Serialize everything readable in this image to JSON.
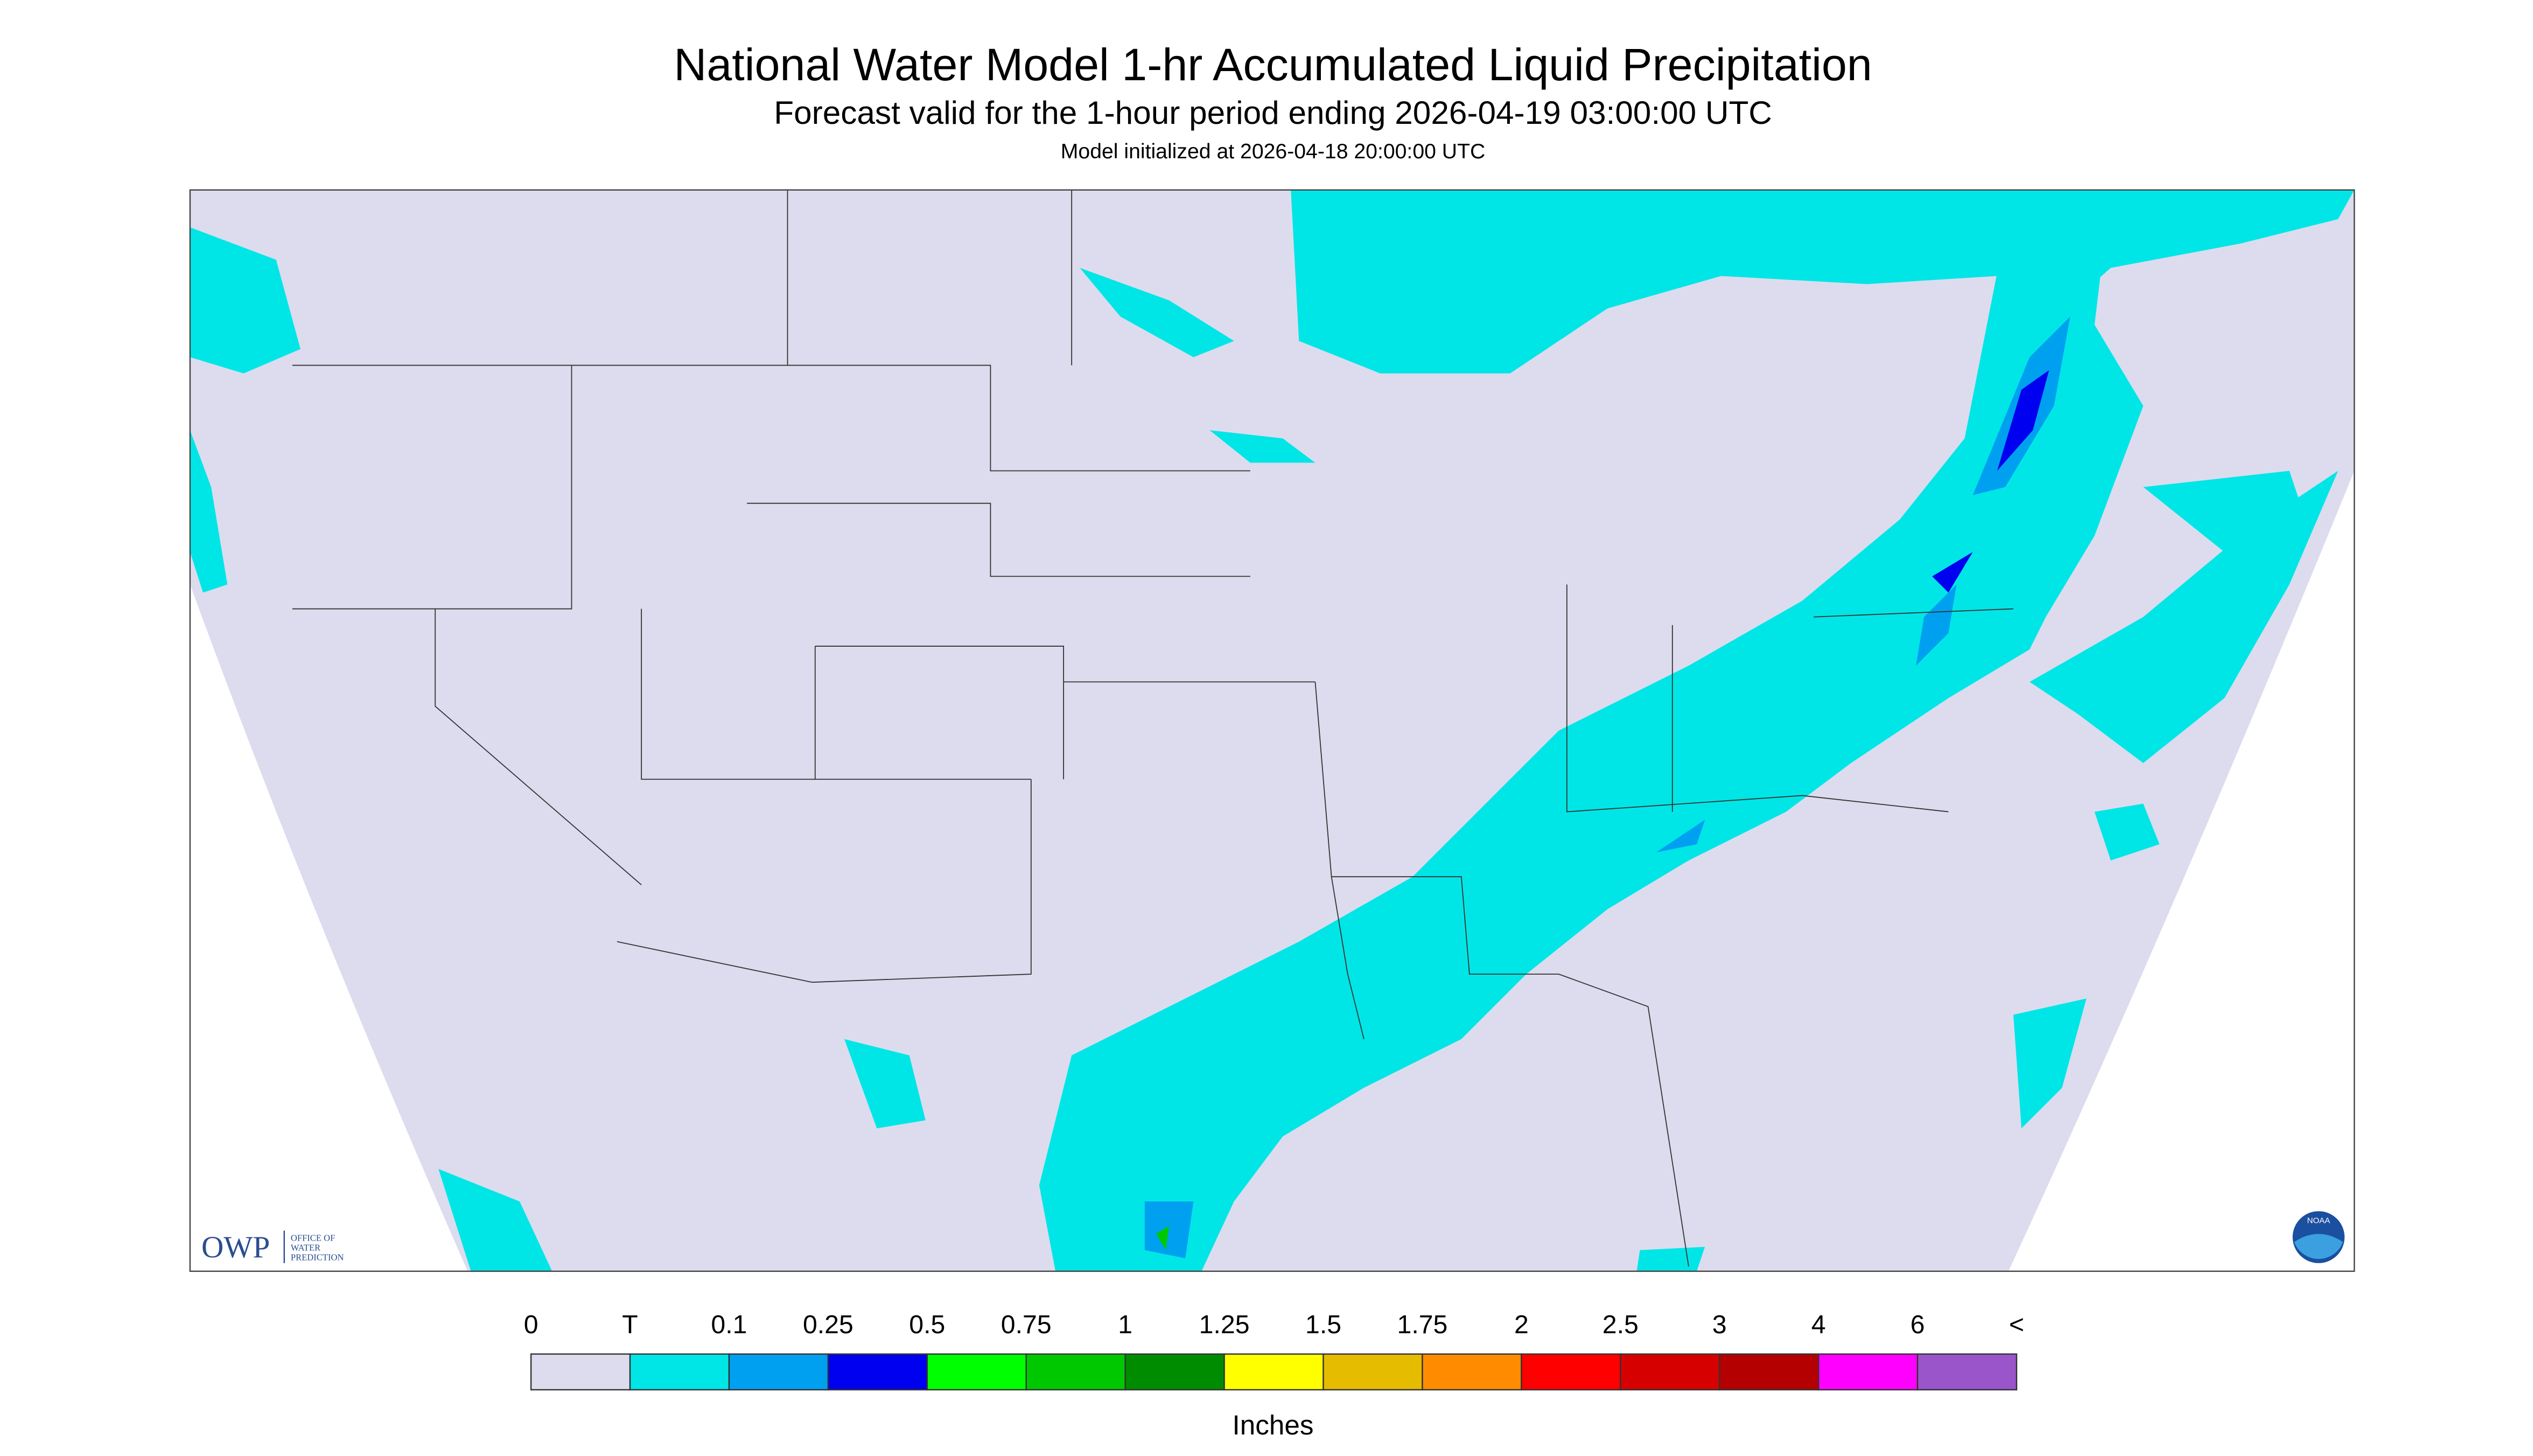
{
  "header": {
    "title": "National Water Model 1-hr Accumulated Liquid Precipitation",
    "subtitle": "Forecast valid for the 1-hour period ending 2026-04-19 03:00:00 UTC",
    "initialized": "Model initialized at 2026-04-18 20:00:00 UTC"
  },
  "logos": {
    "owp": "OWP",
    "owp_lines": [
      "OFFICE OF",
      "WATER",
      "PREDICTION"
    ],
    "noaa": "NOAA"
  },
  "legend": {
    "labels": [
      "0",
      "T",
      "0.1",
      "0.25",
      "0.5",
      "0.75",
      "1",
      "1.25",
      "1.5",
      "1.75",
      "2",
      "2.5",
      "3",
      "4",
      "6",
      "<"
    ],
    "colors": [
      "#dcdcee",
      "#00e6e6",
      "#00a0f0",
      "#0000f0",
      "#00ff00",
      "#00c800",
      "#008c00",
      "#ffff00",
      "#e6bc00",
      "#ff8c00",
      "#ff0000",
      "#d70000",
      "#b40000",
      "#ff00ff",
      "#9955c9"
    ],
    "unit": "Inches"
  }
}
